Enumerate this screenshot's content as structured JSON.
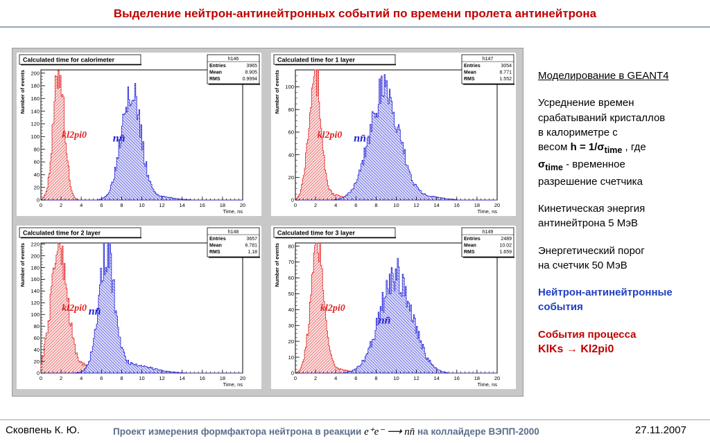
{
  "title": "Выделение нейтрон-антинейтронных событий по времени пролета антинейтрона",
  "notes": {
    "p1": "Моделирование в GEANT4",
    "p2_line1": "Усреднение времен",
    "p2_line2": "срабатываний кристаллов",
    "p2_line3": "в калориметре с",
    "p2_weight_prefix": "весом ",
    "p2_h": "h = 1/σ",
    "p2_time": "time",
    "p2_after": " , где",
    "p2_sigma": "σ",
    "p2_sigma_sub": "time",
    "p2_sigma_after": " - временное",
    "p2_line_last": "разрешение счетчика",
    "p3_line1": "Кинетическая энергия",
    "p3_line2": "антинейтрона 5 МэВ",
    "p4_line1": "Энергетический порог",
    "p4_line2": "на счетчик 50 МэВ",
    "p5_line1": "Нейтрон-антинейтронные",
    "p5_line2": "события",
    "p6_line1": "События процесса",
    "p6_line2": "KlKs → Kl2pi0"
  },
  "footer": {
    "author": "Сковпень К. Ю.",
    "project_pre": "Проект измерения формфактора нейтрона в реакции",
    "reaction_lhs": "e⁺e⁻",
    "arrow": "⟶",
    "reaction_rhs": "nn̄",
    "project_post": "на коллайдере ВЭПП-2000",
    "date": "27.11.2007"
  },
  "colors": {
    "red_fill": "#f4b4b4",
    "red_line": "#e02020",
    "blue_fill": "#a8a8f0",
    "blue_line": "#2020d8",
    "title": "#c00000"
  },
  "chart_data": [
    {
      "type": "bar",
      "title": "Calculated time for calorimeter",
      "hist": "h146",
      "stats": [
        [
          "Entries",
          "3965"
        ],
        [
          "Mean",
          "8.905"
        ],
        [
          "RMS",
          "0.9994"
        ]
      ],
      "xlabel": "Time, ns",
      "ylabel": "Number of events",
      "xlim": [
        0,
        20
      ],
      "ylim": [
        0,
        205
      ],
      "xticks": [
        0,
        2,
        4,
        6,
        8,
        10,
        12,
        14,
        16,
        18,
        20
      ],
      "yticks": [
        0,
        20,
        40,
        60,
        80,
        100,
        120,
        140,
        160,
        180,
        200
      ],
      "red_label": "kl2pi0",
      "blue_label": "nn̄",
      "series": [
        {
          "name": "kl2pi0",
          "mean": 1.8,
          "sigma": 0.55,
          "peak": 205,
          "tail": 0.0,
          "tailmean": 0,
          "tailsigma": 1
        },
        {
          "name": "nn̄",
          "mean": 8.9,
          "sigma": 0.95,
          "peak": 180,
          "tail": 0.03,
          "tailmean": 11.5,
          "tailsigma": 1.5
        }
      ]
    },
    {
      "type": "bar",
      "title": "Calculated time for 1 layer",
      "hist": "h147",
      "stats": [
        [
          "Entries",
          "3054"
        ],
        [
          "Mean",
          "8.771"
        ],
        [
          "RMS",
          "1.552"
        ]
      ],
      "xlabel": "Time, ns",
      "ylabel": "Number of events",
      "xlim": [
        0,
        20
      ],
      "ylim": [
        0,
        115
      ],
      "xticks": [
        0,
        2,
        4,
        6,
        8,
        10,
        12,
        14,
        16,
        18,
        20
      ],
      "yticks": [
        0,
        20,
        40,
        60,
        80,
        100
      ],
      "red_label": "kl2pi0",
      "blue_label": "nn̄",
      "series": [
        {
          "name": "kl2pi0",
          "mean": 1.9,
          "sigma": 0.6,
          "peak": 115,
          "tail": 0.04,
          "tailmean": 3.5,
          "tailsigma": 1.2
        },
        {
          "name": "nn̄",
          "mean": 8.8,
          "sigma": 1.5,
          "peak": 95,
          "tail": 0.03,
          "tailmean": 13,
          "tailsigma": 1.5
        }
      ]
    },
    {
      "type": "bar",
      "title": "Calculated time for 2 layer",
      "hist": "h148",
      "stats": [
        [
          "Entries",
          "3657"
        ],
        [
          "Mean",
          "6.781"
        ],
        [
          "RMS",
          "1.18"
        ]
      ],
      "xlabel": "Time, ns",
      "ylabel": "Number of events",
      "xlim": [
        0,
        20
      ],
      "ylim": [
        0,
        222
      ],
      "xticks": [
        0,
        2,
        4,
        6,
        8,
        10,
        12,
        14,
        16,
        18,
        20
      ],
      "yticks": [
        0,
        20,
        40,
        60,
        80,
        100,
        120,
        140,
        160,
        180,
        200,
        220
      ],
      "red_label": "kl2pi0",
      "blue_label": "nn̄",
      "series": [
        {
          "name": "kl2pi0",
          "mean": 1.8,
          "sigma": 0.8,
          "peak": 215,
          "tail": 0.06,
          "tailmean": 4,
          "tailsigma": 1.5
        },
        {
          "name": "nn̄",
          "mean": 6.5,
          "sigma": 0.8,
          "peak": 200,
          "tail": 0.07,
          "tailmean": 9,
          "tailsigma": 2
        }
      ]
    },
    {
      "type": "bar",
      "title": "Calculated time for 3 layer",
      "hist": "h149",
      "stats": [
        [
          "Entries",
          "2489"
        ],
        [
          "Mean",
          "10.02"
        ],
        [
          "RMS",
          "1.659"
        ]
      ],
      "xlabel": "Time, ns",
      "ylabel": "Number of events",
      "xlim": [
        0,
        20
      ],
      "ylim": [
        0,
        82
      ],
      "xticks": [
        0,
        2,
        4,
        6,
        8,
        10,
        12,
        14,
        16,
        18,
        20
      ],
      "yticks": [
        0,
        10,
        20,
        30,
        40,
        50,
        60,
        70,
        80
      ],
      "red_label": "kl2pi0",
      "blue_label": "nn̄",
      "series": [
        {
          "name": "kl2pi0",
          "mean": 2.2,
          "sigma": 0.65,
          "peak": 80,
          "tail": 0.03,
          "tailmean": 4,
          "tailsigma": 1.2
        },
        {
          "name": "nn̄",
          "mean": 10.0,
          "sigma": 1.6,
          "peak": 62,
          "tail": 0.0,
          "tailmean": 0,
          "tailsigma": 1
        }
      ]
    }
  ]
}
